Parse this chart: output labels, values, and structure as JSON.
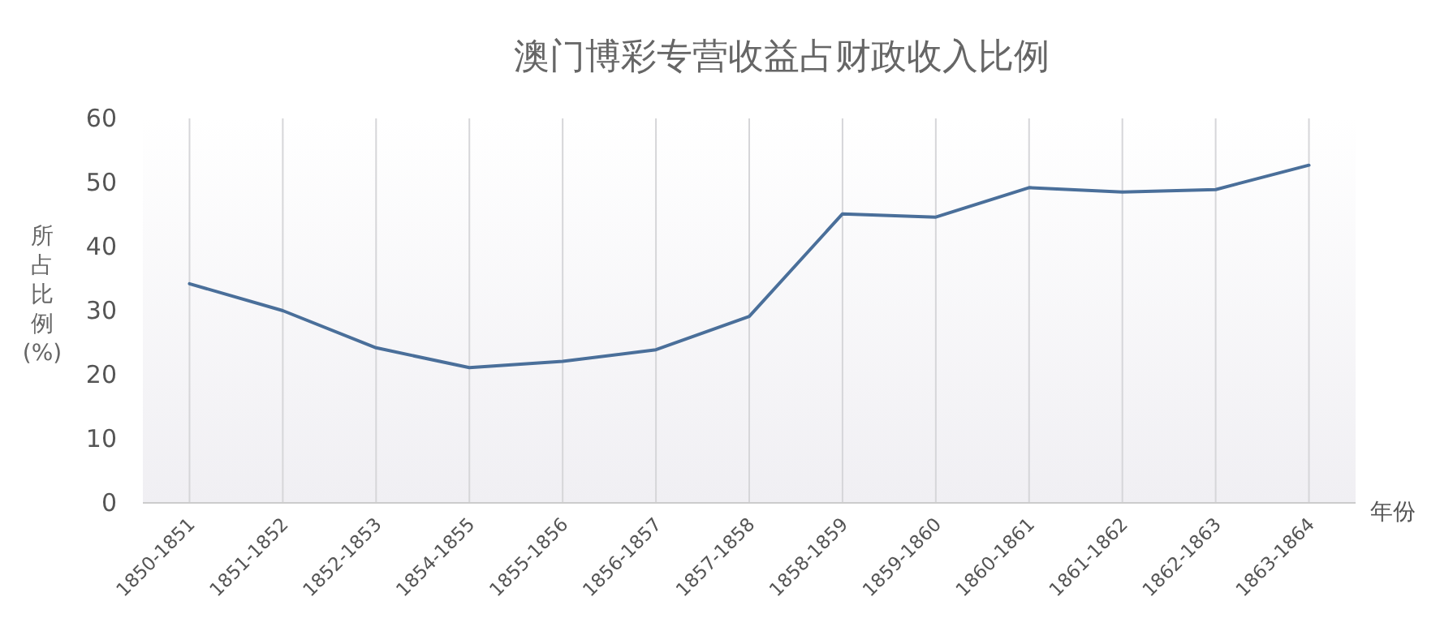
{
  "chart_data": {
    "type": "line",
    "title": "澳门博彩专营收益占财政收入比例",
    "xlabel": "年份",
    "ylabel": "所占比例(%)",
    "categories": [
      "1850-1851",
      "1851-1852",
      "1852-1853",
      "1854-1855",
      "1855-1856",
      "1856-1857",
      "1857-1858",
      "1858-1859",
      "1859-1860",
      "1860-1861",
      "1861-1862",
      "1862-1863",
      "1863-1864"
    ],
    "series": [
      {
        "color": "#4a6f9a",
        "values": [
          34.2,
          30.0,
          24.2,
          21.1,
          22.1,
          23.9,
          29.1,
          45.1,
          44.6,
          49.2,
          48.5,
          48.9,
          52.7
        ]
      }
    ],
    "ylim": [
      0,
      60
    ],
    "yticks": [
      0,
      10,
      20,
      30,
      40,
      50,
      60
    ],
    "grid": "x"
  }
}
